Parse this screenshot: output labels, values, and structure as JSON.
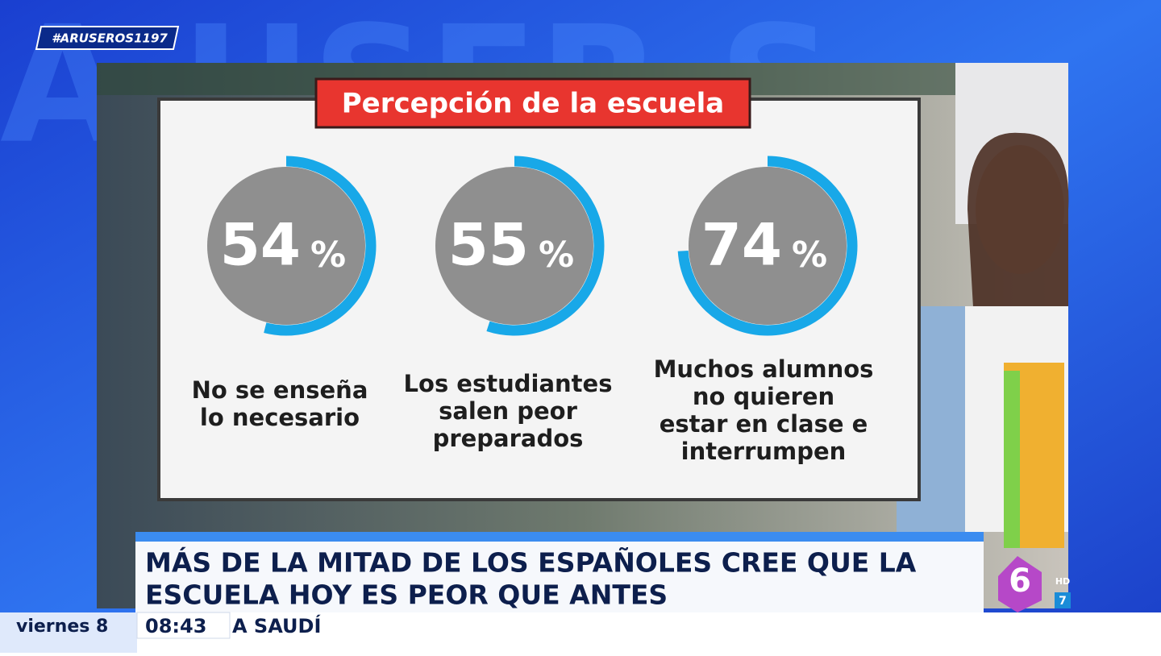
{
  "hashtag": "#ARUSEROS1197",
  "panel": {
    "title": "Percepción de la escuela",
    "items": [
      {
        "value": 54,
        "unit": "%",
        "label": [
          "No se enseña",
          "lo necesario"
        ]
      },
      {
        "value": 55,
        "unit": "%",
        "label": [
          "Los estudiantes",
          "salen peor",
          "preparados"
        ]
      },
      {
        "value": 74,
        "unit": "%",
        "label": [
          "Muchos alumnos",
          "no quieren",
          "estar en clase e",
          "interrumpen"
        ]
      }
    ]
  },
  "headline": [
    "MÁS DE LA MITAD DE LOS ESPAÑOLES CREE QUE LA",
    "ESCUELA HOY ES PEOR QUE ANTES"
  ],
  "ticker": {
    "day": "viernes 8",
    "time": "08:43",
    "text": "A SAUDÍ"
  },
  "logo": {
    "mark": "6",
    "hd": "HD",
    "channel": "7"
  }
}
